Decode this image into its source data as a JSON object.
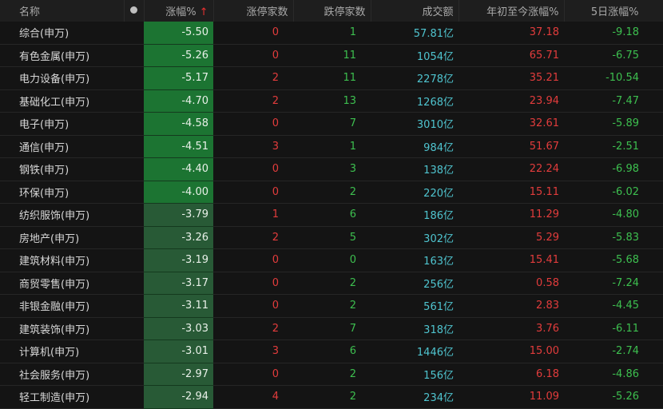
{
  "colors": {
    "up": "#e23c3c",
    "down": "#3dbf4f",
    "amount": "#4fc4cf",
    "strong_bg": "#1c7432",
    "weak_bg": "#285a36"
  },
  "headers": {
    "name": "名称",
    "dot_icon": "circle-dot",
    "change": "涨幅%",
    "sort_icon": "arrow-up",
    "limit_up": "涨停家数",
    "limit_down": "跌停家数",
    "amount": "成交额",
    "ytd": "年初至今涨幅%",
    "five_day": "5日涨幅%"
  },
  "rows": [
    {
      "name": "综合(申万)",
      "change": "-5.50",
      "up": "0",
      "down": "1",
      "amount": "57.81亿",
      "ytd": "37.18",
      "d5": "-9.18"
    },
    {
      "name": "有色金属(申万)",
      "change": "-5.26",
      "up": "0",
      "down": "11",
      "amount": "1054亿",
      "ytd": "65.71",
      "d5": "-6.75"
    },
    {
      "name": "电力设备(申万)",
      "change": "-5.17",
      "up": "2",
      "down": "11",
      "amount": "2278亿",
      "ytd": "35.21",
      "d5": "-10.54"
    },
    {
      "name": "基础化工(申万)",
      "change": "-4.70",
      "up": "2",
      "down": "13",
      "amount": "1268亿",
      "ytd": "23.94",
      "d5": "-7.47"
    },
    {
      "name": "电子(申万)",
      "change": "-4.58",
      "up": "0",
      "down": "7",
      "amount": "3010亿",
      "ytd": "32.61",
      "d5": "-5.89"
    },
    {
      "name": "通信(申万)",
      "change": "-4.51",
      "up": "3",
      "down": "1",
      "amount": "984亿",
      "ytd": "51.67",
      "d5": "-2.51"
    },
    {
      "name": "钢铁(申万)",
      "change": "-4.40",
      "up": "0",
      "down": "3",
      "amount": "138亿",
      "ytd": "22.24",
      "d5": "-6.98"
    },
    {
      "name": "环保(申万)",
      "change": "-4.00",
      "up": "0",
      "down": "2",
      "amount": "220亿",
      "ytd": "15.11",
      "d5": "-6.02"
    },
    {
      "name": "纺织服饰(申万)",
      "change": "-3.79",
      "up": "1",
      "down": "6",
      "amount": "186亿",
      "ytd": "11.29",
      "d5": "-4.80"
    },
    {
      "name": "房地产(申万)",
      "change": "-3.26",
      "up": "2",
      "down": "5",
      "amount": "302亿",
      "ytd": "5.29",
      "d5": "-5.83"
    },
    {
      "name": "建筑材料(申万)",
      "change": "-3.19",
      "up": "0",
      "down": "0",
      "amount": "163亿",
      "ytd": "15.41",
      "d5": "-5.68"
    },
    {
      "name": "商贸零售(申万)",
      "change": "-3.17",
      "up": "0",
      "down": "2",
      "amount": "256亿",
      "ytd": "0.58",
      "d5": "-7.24"
    },
    {
      "name": "非银金融(申万)",
      "change": "-3.11",
      "up": "0",
      "down": "2",
      "amount": "561亿",
      "ytd": "2.83",
      "d5": "-4.45"
    },
    {
      "name": "建筑装饰(申万)",
      "change": "-3.03",
      "up": "2",
      "down": "7",
      "amount": "318亿",
      "ytd": "3.76",
      "d5": "-6.11"
    },
    {
      "name": "计算机(申万)",
      "change": "-3.01",
      "up": "3",
      "down": "6",
      "amount": "1446亿",
      "ytd": "15.00",
      "d5": "-2.74"
    },
    {
      "name": "社会服务(申万)",
      "change": "-2.97",
      "up": "0",
      "down": "2",
      "amount": "156亿",
      "ytd": "6.18",
      "d5": "-4.86"
    },
    {
      "name": "轻工制造(申万)",
      "change": "-2.94",
      "up": "4",
      "down": "2",
      "amount": "234亿",
      "ytd": "11.09",
      "d5": "-5.26"
    }
  ]
}
